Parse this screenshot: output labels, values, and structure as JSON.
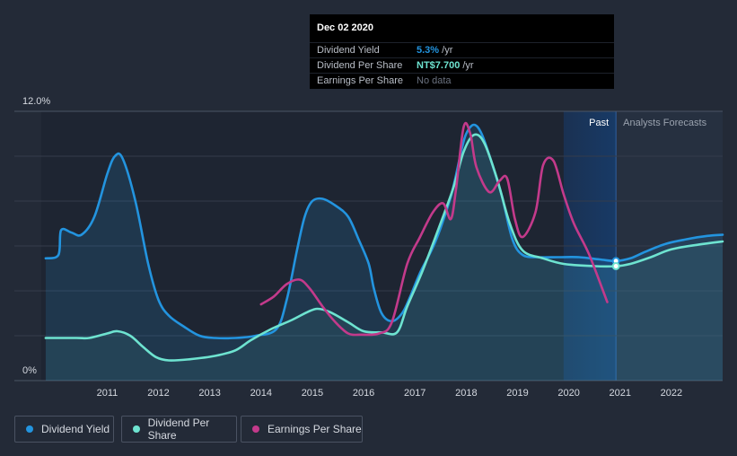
{
  "chart_data": {
    "type": "line",
    "y_top_label": "12.0%",
    "y_bottom_label": "0%",
    "ylim": [
      0,
      12
    ],
    "xlim": [
      2009.75,
      2023.0
    ],
    "x_ticks": [
      "2011",
      "2012",
      "2013",
      "2014",
      "2015",
      "2016",
      "2017",
      "2018",
      "2019",
      "2020",
      "2021",
      "2022"
    ],
    "x_tick_values": [
      2011,
      2012,
      2013,
      2014,
      2015,
      2016,
      2017,
      2018,
      2019,
      2020,
      2021,
      2022
    ],
    "gridlines": [
      0,
      2,
      4,
      6,
      8,
      10,
      12
    ],
    "forecast_start": 2019.9,
    "cursor_x": 2020.92,
    "past_label": "Past",
    "forecast_label": "Analysts Forecasts",
    "colors": {
      "dividend_yield": "#2394df",
      "dividend_per_share": "#6ee3d0",
      "earnings_per_share": "#c33a8b"
    },
    "series": [
      {
        "name": "Dividend Yield",
        "key": "dividend_yield",
        "filled": true,
        "points": [
          [
            2009.8,
            5.45
          ],
          [
            2010.05,
            5.6
          ],
          [
            2010.1,
            6.7
          ],
          [
            2010.3,
            6.6
          ],
          [
            2010.5,
            6.5
          ],
          [
            2010.75,
            7.3
          ],
          [
            2011.0,
            9.2
          ],
          [
            2011.15,
            10.0
          ],
          [
            2011.3,
            9.9
          ],
          [
            2011.55,
            8.0
          ],
          [
            2011.8,
            5.2
          ],
          [
            2012.0,
            3.6
          ],
          [
            2012.2,
            2.9
          ],
          [
            2012.5,
            2.4
          ],
          [
            2012.8,
            2.0
          ],
          [
            2013.1,
            1.9
          ],
          [
            2013.5,
            1.9
          ],
          [
            2013.9,
            2.0
          ],
          [
            2014.3,
            2.3
          ],
          [
            2014.5,
            3.6
          ],
          [
            2014.7,
            5.8
          ],
          [
            2014.85,
            7.3
          ],
          [
            2015.0,
            8.0
          ],
          [
            2015.2,
            8.1
          ],
          [
            2015.45,
            7.8
          ],
          [
            2015.7,
            7.3
          ],
          [
            2015.9,
            6.3
          ],
          [
            2016.1,
            5.2
          ],
          [
            2016.2,
            4.1
          ],
          [
            2016.35,
            3.0
          ],
          [
            2016.55,
            2.65
          ],
          [
            2016.75,
            3.0
          ],
          [
            2016.9,
            3.7
          ],
          [
            2017.1,
            4.8
          ],
          [
            2017.4,
            6.2
          ],
          [
            2017.7,
            8.2
          ],
          [
            2017.9,
            10.2
          ],
          [
            2018.0,
            11.0
          ],
          [
            2018.15,
            11.4
          ],
          [
            2018.3,
            11.0
          ],
          [
            2018.5,
            9.7
          ],
          [
            2018.7,
            8.2
          ],
          [
            2018.9,
            6.3
          ],
          [
            2019.1,
            5.6
          ],
          [
            2019.4,
            5.5
          ],
          [
            2019.8,
            5.5
          ],
          [
            2020.2,
            5.5
          ],
          [
            2020.6,
            5.4
          ],
          [
            2020.92,
            5.33
          ],
          [
            2021.2,
            5.45
          ],
          [
            2021.5,
            5.75
          ],
          [
            2021.9,
            6.1
          ],
          [
            2022.3,
            6.3
          ],
          [
            2022.7,
            6.45
          ],
          [
            2023.0,
            6.5
          ]
        ]
      },
      {
        "name": "Dividend Per Share",
        "key": "dividend_per_share",
        "filled": true,
        "points": [
          [
            2009.8,
            1.9
          ],
          [
            2010.4,
            1.9
          ],
          [
            2010.65,
            1.9
          ],
          [
            2011.0,
            2.1
          ],
          [
            2011.2,
            2.2
          ],
          [
            2011.45,
            2.0
          ],
          [
            2011.7,
            1.5
          ],
          [
            2011.95,
            1.05
          ],
          [
            2012.2,
            0.9
          ],
          [
            2012.6,
            0.95
          ],
          [
            2013.1,
            1.1
          ],
          [
            2013.5,
            1.35
          ],
          [
            2013.8,
            1.8
          ],
          [
            2014.2,
            2.3
          ],
          [
            2014.6,
            2.7
          ],
          [
            2014.9,
            3.05
          ],
          [
            2015.1,
            3.2
          ],
          [
            2015.35,
            3.05
          ],
          [
            2015.7,
            2.6
          ],
          [
            2016.0,
            2.2
          ],
          [
            2016.35,
            2.15
          ],
          [
            2016.65,
            2.15
          ],
          [
            2016.85,
            3.3
          ],
          [
            2017.15,
            4.9
          ],
          [
            2017.45,
            6.7
          ],
          [
            2017.75,
            8.6
          ],
          [
            2017.95,
            10.2
          ],
          [
            2018.15,
            10.95
          ],
          [
            2018.35,
            10.6
          ],
          [
            2018.6,
            9.0
          ],
          [
            2018.85,
            7.0
          ],
          [
            2019.1,
            5.8
          ],
          [
            2019.5,
            5.45
          ],
          [
            2019.9,
            5.2
          ],
          [
            2020.5,
            5.1
          ],
          [
            2020.92,
            5.1
          ],
          [
            2021.2,
            5.2
          ],
          [
            2021.6,
            5.5
          ],
          [
            2022.0,
            5.85
          ],
          [
            2022.5,
            6.05
          ],
          [
            2023.0,
            6.2
          ]
        ]
      },
      {
        "name": "Earnings Per Share",
        "key": "earnings_per_share",
        "filled": false,
        "points": [
          [
            2014.0,
            3.4
          ],
          [
            2014.25,
            3.75
          ],
          [
            2014.5,
            4.3
          ],
          [
            2014.75,
            4.5
          ],
          [
            2014.95,
            4.1
          ],
          [
            2015.2,
            3.3
          ],
          [
            2015.45,
            2.6
          ],
          [
            2015.7,
            2.1
          ],
          [
            2015.95,
            2.05
          ],
          [
            2016.3,
            2.1
          ],
          [
            2016.55,
            2.6
          ],
          [
            2016.85,
            5.2
          ],
          [
            2017.1,
            6.4
          ],
          [
            2017.35,
            7.5
          ],
          [
            2017.55,
            7.9
          ],
          [
            2017.7,
            7.2
          ],
          [
            2017.8,
            8.5
          ],
          [
            2017.95,
            11.3
          ],
          [
            2018.08,
            11.0
          ],
          [
            2018.2,
            9.5
          ],
          [
            2018.45,
            8.4
          ],
          [
            2018.65,
            8.9
          ],
          [
            2018.8,
            9.0
          ],
          [
            2018.95,
            7.2
          ],
          [
            2019.1,
            6.4
          ],
          [
            2019.35,
            7.5
          ],
          [
            2019.5,
            9.6
          ],
          [
            2019.7,
            9.8
          ],
          [
            2019.9,
            8.3
          ],
          [
            2020.1,
            7.0
          ],
          [
            2020.4,
            5.6
          ],
          [
            2020.75,
            3.5
          ]
        ]
      }
    ]
  },
  "tooltip": {
    "date": "Dec 02 2020",
    "rows": [
      {
        "label": "Dividend Yield",
        "value": "5.3%",
        "unit": " /yr",
        "color": "#2394df"
      },
      {
        "label": "Dividend Per Share",
        "value": "NT$7.700",
        "unit": " /yr",
        "color": "#6ee3d0"
      },
      {
        "label": "Earnings Per Share",
        "value": "No data",
        "unit": "",
        "color": "#6b7280"
      }
    ]
  },
  "legend": {
    "items": [
      {
        "label": "Dividend Yield",
        "color": "#2394df"
      },
      {
        "label": "Dividend Per Share",
        "color": "#6ee3d0"
      },
      {
        "label": "Earnings Per Share",
        "color": "#c33a8b"
      }
    ]
  }
}
